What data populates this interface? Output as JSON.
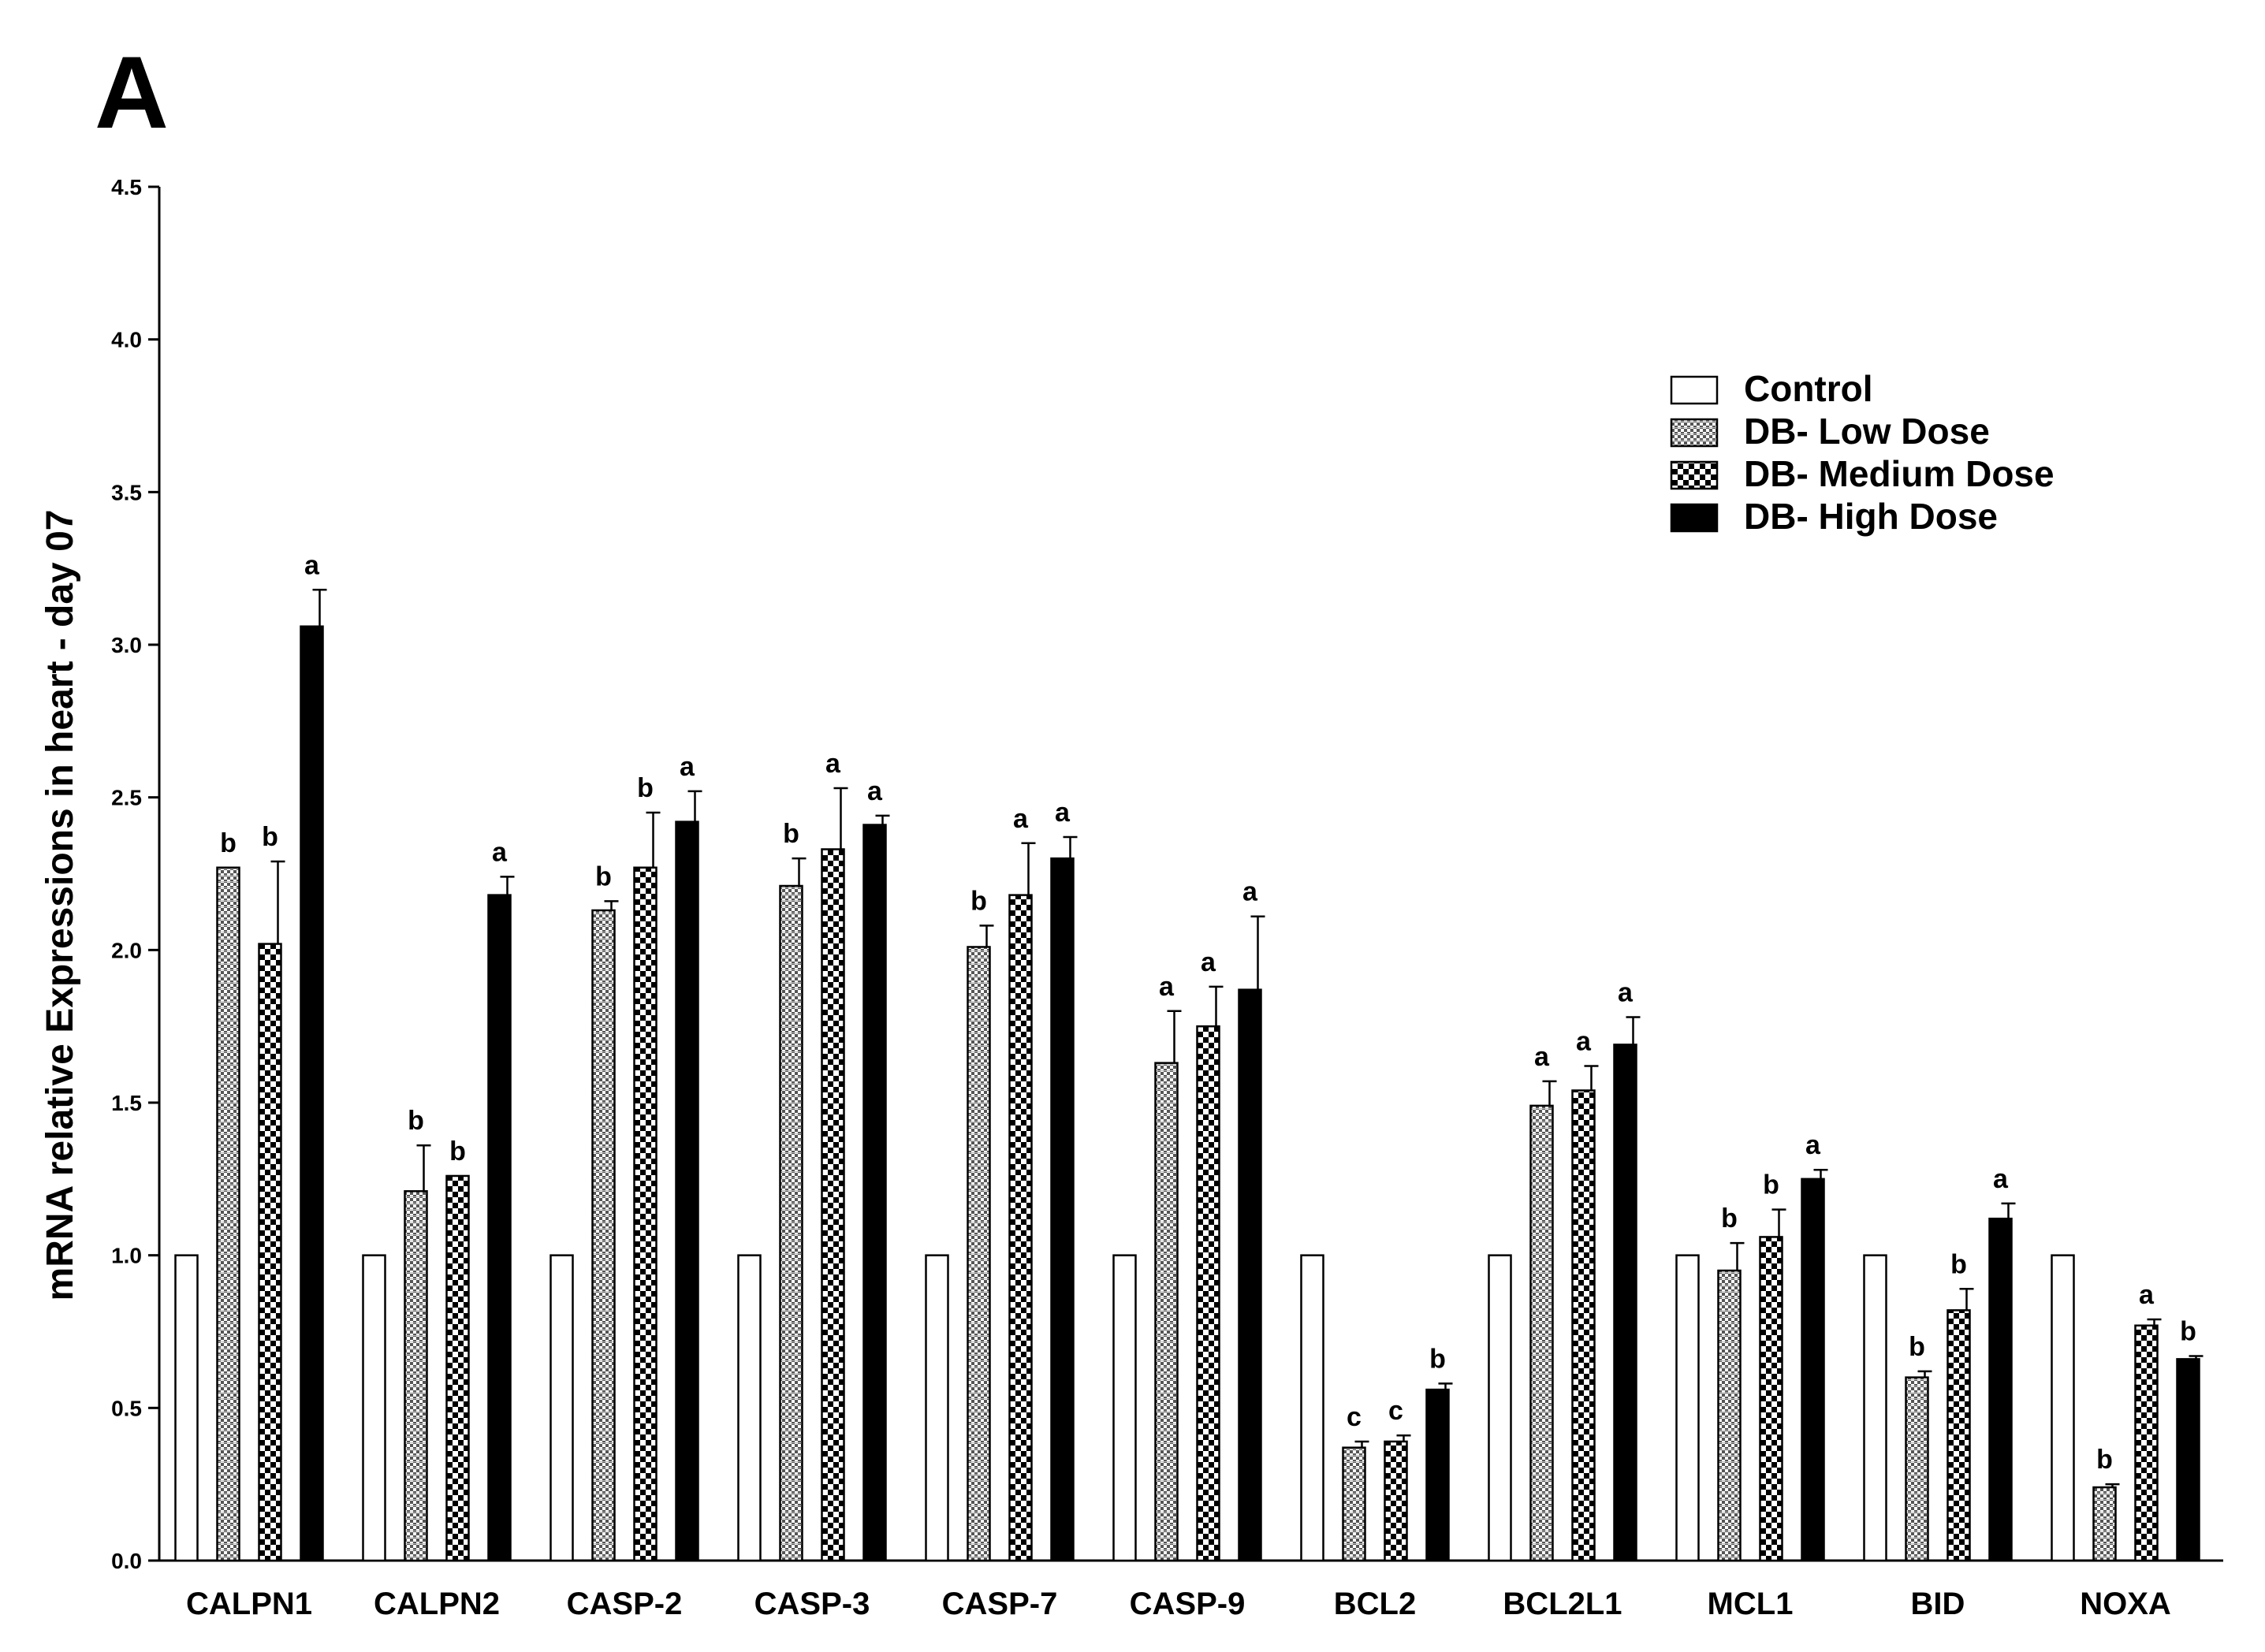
{
  "panel_label": "A",
  "chart_data": {
    "type": "bar",
    "title": "",
    "xlabel": "",
    "ylabel": "mRNA relative Expressions in heart - day 07",
    "ylim": [
      0,
      4.5
    ],
    "yticks": [
      "0.0",
      "0.5",
      "1.0",
      "1.5",
      "2.0",
      "2.5",
      "3.0",
      "3.5",
      "4.0",
      "4.5"
    ],
    "categories": [
      "CALPN1",
      "CALPN2",
      "CASP-2",
      "CASP-3",
      "CASP-7",
      "CASP-9",
      "BCL2",
      "BCL2L1",
      "MCL1",
      "BID",
      "NOXA"
    ],
    "legend_position": "top-right",
    "series": [
      {
        "name": "Control",
        "pattern": "white",
        "values": [
          1.0,
          1.0,
          1.0,
          1.0,
          1.0,
          1.0,
          1.0,
          1.0,
          1.0,
          1.0,
          1.0
        ],
        "errors": [
          0,
          0,
          0,
          0,
          0,
          0,
          0,
          0,
          0,
          0,
          0
        ],
        "labels": [
          "",
          "",
          "",
          "",
          "",
          "",
          "",
          "",
          "",
          "",
          ""
        ]
      },
      {
        "name": "DB- Low Dose",
        "pattern": "fine-check",
        "values": [
          2.27,
          1.21,
          2.13,
          2.21,
          2.01,
          1.63,
          0.37,
          1.49,
          0.95,
          0.6,
          0.24
        ],
        "errors": [
          0,
          0.15,
          0.03,
          0.09,
          0.07,
          0.17,
          0.02,
          0.08,
          0.09,
          0.02,
          0.01
        ],
        "labels": [
          "b",
          "b",
          "b",
          "b",
          "b",
          "a",
          "c",
          "a",
          "b",
          "b",
          "b"
        ]
      },
      {
        "name": "DB- Medium Dose",
        "pattern": "coarse-check",
        "values": [
          2.02,
          1.26,
          2.27,
          2.33,
          2.18,
          1.75,
          0.39,
          1.54,
          1.06,
          0.82,
          0.77
        ],
        "errors": [
          0.27,
          0,
          0.18,
          0.2,
          0.17,
          0.13,
          0.02,
          0.08,
          0.09,
          0.07,
          0.02
        ],
        "labels": [
          "b",
          "b",
          "b",
          "a",
          "a",
          "a",
          "c",
          "a",
          "b",
          "b",
          "a"
        ]
      },
      {
        "name": "DB- High Dose",
        "pattern": "black",
        "values": [
          3.06,
          2.18,
          2.42,
          2.41,
          2.3,
          1.87,
          0.56,
          1.69,
          1.25,
          1.12,
          0.66
        ],
        "errors": [
          0.12,
          0.06,
          0.1,
          0.03,
          0.07,
          0.24,
          0.02,
          0.09,
          0.03,
          0.05,
          0.01
        ],
        "labels": [
          "a",
          "a",
          "a",
          "a",
          "a",
          "a",
          "b",
          "a",
          "a",
          "a",
          "b"
        ]
      }
    ]
  }
}
